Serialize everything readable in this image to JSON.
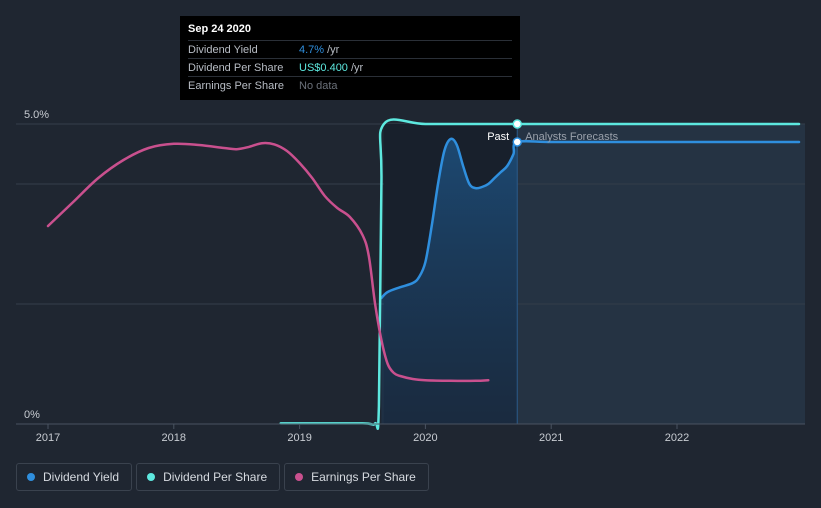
{
  "tooltip": {
    "date": "Sep 24 2020",
    "rows": [
      {
        "label": "Dividend Yield",
        "value": "4.7%",
        "unit": "/yr"
      },
      {
        "label": "Dividend Per Share",
        "value": "US$0.400",
        "unit": "/yr"
      },
      {
        "label": "Earnings Per Share",
        "value": "No data",
        "unit": ""
      }
    ]
  },
  "legend": [
    {
      "label": "Dividend Yield",
      "color": "#2f8fde"
    },
    {
      "label": "Dividend Per Share",
      "color": "#5de8df"
    },
    {
      "label": "Earnings Per Share",
      "color": "#c9508e"
    }
  ],
  "chart_data": {
    "type": "line",
    "title": "",
    "xlabel": "",
    "ylabel": "",
    "xlim": [
      2016.97,
      2022.97
    ],
    "ylim": [
      0,
      5.0
    ],
    "y_tick_labels": [
      {
        "value": 5.0,
        "label": "5.0%"
      },
      {
        "value": 0,
        "label": "0%"
      }
    ],
    "x_ticks": [
      2017,
      2018,
      2019,
      2020,
      2021,
      2022
    ],
    "x_tick_labels": [
      "2017",
      "2018",
      "2019",
      "2020",
      "2021",
      "2022"
    ],
    "gridlines_y": [
      0,
      2.0,
      4.0,
      5.0
    ],
    "past_label": "Past",
    "forecast_label": "Analysts Forecasts",
    "divider_x": 2020.73,
    "highlight_start_x": 2019.67,
    "series": [
      {
        "name": "Dividend Yield",
        "color": "#2f8fde",
        "x": [
          2019.65,
          2019.7,
          2019.8,
          2019.9,
          2019.95,
          2020.0,
          2020.05,
          2020.1,
          2020.15,
          2020.2,
          2020.25,
          2020.3,
          2020.35,
          2020.4,
          2020.45,
          2020.5,
          2020.55,
          2020.6,
          2020.65,
          2020.7,
          2020.73,
          2021.0,
          2021.5,
          2022.0,
          2022.5,
          2022.97
        ],
        "values": [
          2.1,
          2.2,
          2.28,
          2.35,
          2.45,
          2.7,
          3.3,
          4.0,
          4.55,
          4.75,
          4.65,
          4.3,
          4.0,
          3.93,
          3.95,
          4.0,
          4.1,
          4.2,
          4.3,
          4.5,
          4.7,
          4.7,
          4.7,
          4.7,
          4.7,
          4.7
        ]
      },
      {
        "name": "Dividend Per Share",
        "color": "#5de8df",
        "x": [
          2018.85,
          2019.0,
          2019.5,
          2019.6,
          2019.63,
          2019.65,
          2019.67,
          2020.0,
          2020.5,
          2020.73,
          2021.0,
          2021.5,
          2022.0,
          2022.5,
          2022.97
        ],
        "values": [
          0.01,
          0.01,
          0.01,
          0.01,
          0.3,
          4.0,
          5.0,
          5.0,
          5.0,
          5.0,
          5.0,
          5.0,
          5.0,
          5.0,
          5.0
        ]
      },
      {
        "name": "Earnings Per Share",
        "color": "#c9508e",
        "x": [
          2017.0,
          2017.2,
          2017.4,
          2017.6,
          2017.8,
          2018.0,
          2018.2,
          2018.4,
          2018.5,
          2018.6,
          2018.7,
          2018.8,
          2018.9,
          2019.0,
          2019.1,
          2019.2,
          2019.3,
          2019.4,
          2019.5,
          2019.55,
          2019.6,
          2019.65,
          2019.7,
          2019.75,
          2019.8,
          2019.9,
          2020.0,
          2020.2,
          2020.4,
          2020.5
        ],
        "values": [
          3.3,
          3.7,
          4.1,
          4.4,
          4.6,
          4.67,
          4.65,
          4.6,
          4.58,
          4.62,
          4.68,
          4.66,
          4.55,
          4.35,
          4.1,
          3.8,
          3.6,
          3.45,
          3.15,
          2.8,
          2.0,
          1.4,
          1.0,
          0.85,
          0.8,
          0.75,
          0.73,
          0.72,
          0.72,
          0.73
        ]
      }
    ]
  }
}
